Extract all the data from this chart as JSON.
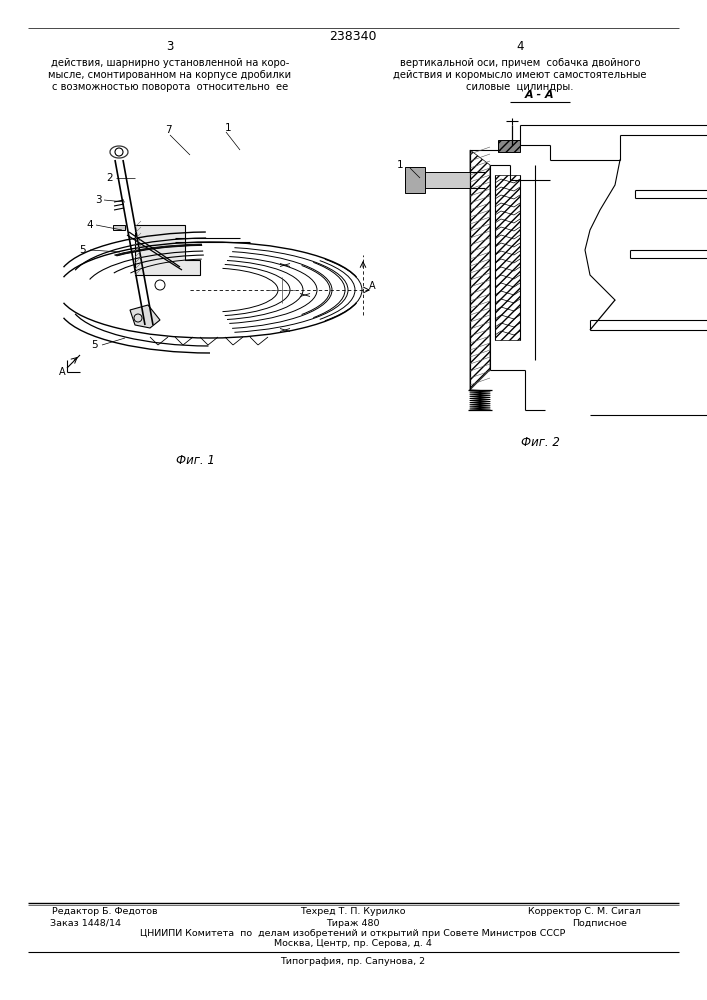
{
  "patent_number": "238340",
  "page_left": "3",
  "page_right": "4",
  "text_left_lines": [
    "действия, шарнирно установленной на коро-",
    "мысле, смонтированном на корпусе дробилки",
    "с возможностью поворота  относительно  ее"
  ],
  "text_right_lines": [
    "вертикальной оси, причем  собачка двойного",
    "действия и коромысло имеют самостоятельные",
    "силовые  цилиндры."
  ],
  "fig1_caption": "Фиг. 1",
  "fig2_caption": "Фиг. 2",
  "section_label": "А - А",
  "footer_line1_left": "Редактор Б. Федотов",
  "footer_line1_mid": "Техред Т. П. Курилко",
  "footer_line1_right": "Корректор С. М. Сигал",
  "footer_line2_left": "Заказ 1448/14",
  "footer_line2_mid": "Тираж 480",
  "footer_line2_right": "Подписное",
  "footer_line3": "ЦНИИПИ Комитета  по  делам изобретений и открытий при Совете Министров СССР",
  "footer_line4": "Москва, Центр, пр. Серова, д. 4",
  "footer_line5": "Типография, пр. Сапунова, 2",
  "bg_color": "#ffffff"
}
